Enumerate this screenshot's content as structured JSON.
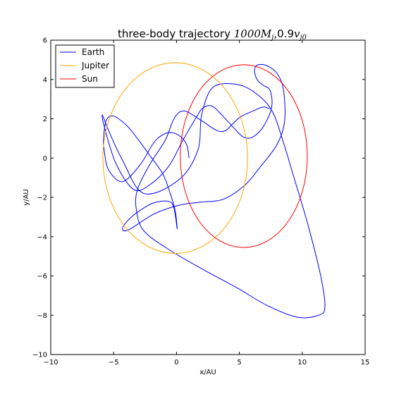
{
  "chart_data": {
    "type": "line",
    "title": {
      "prefix": "three-body trajectory ",
      "math_value": "1000",
      "math_var": "M",
      "math_sub": "j",
      "separator": ",0.9",
      "vel_var": "v",
      "vel_sub": "j0"
    },
    "xlabel": "x/AU",
    "ylabel": "y/AU",
    "xlim": [
      -10,
      15
    ],
    "ylim": [
      -10,
      6
    ],
    "xticks": [
      -10,
      -5,
      0,
      5,
      10,
      15
    ],
    "yticks": [
      -10,
      -8,
      -6,
      -4,
      -2,
      0,
      2,
      4,
      6
    ],
    "grid": false,
    "legend_position": "top-left",
    "series": [
      {
        "name": "Earth",
        "color": "#0000ff",
        "x": [
          1.0,
          0.8,
          0.2,
          -0.6,
          -1.3,
          -1.9,
          -2.9,
          -4.3,
          -5.4,
          -5.75,
          -5.8,
          -5.6,
          -5.1,
          -4.4,
          -3.6,
          -2.2,
          -1.1,
          -0.5,
          -0.1,
          0.05,
          -0.2,
          -0.65,
          -1.9,
          -3.2,
          -3.9,
          -4.3,
          -3.8,
          -1.8,
          0.2,
          1.8,
          3.7,
          5.4,
          6.6,
          8.0,
          8.6,
          8.5,
          8.0,
          7.2,
          6.5,
          6.2,
          6.4,
          6.9,
          7.4,
          7.6,
          7.45,
          6.8,
          6.0,
          5.4,
          4.9,
          3.6,
          2.8,
          2.1,
          1.6,
          0.5,
          -0.6,
          -2.1,
          -3.4,
          -4.8,
          -5.7,
          -5.9,
          -5.4,
          -4.3,
          -2.6,
          0.2,
          1.7,
          2.0,
          2.9,
          4.8,
          6.3,
          7.6,
          8.5,
          9.3,
          10.5,
          11.5,
          11.8,
          11.3,
          9.6,
          7.2,
          4.8,
          2.2,
          -0.5,
          -2.6,
          -3.2,
          -3.1,
          -2.1,
          -0.9,
          -0.2,
          0.6,
          2.0,
          3.2,
          3.9,
          4.4,
          5.1,
          6.1,
          6.9,
          7.4
        ],
        "y": [
          0.0,
          0.7,
          1.15,
          1.3,
          1.1,
          0.7,
          -0.35,
          -1.2,
          -0.6,
          0.4,
          1.0,
          1.9,
          2.15,
          1.9,
          1.4,
          0.2,
          -0.8,
          -1.8,
          -2.7,
          -3.6,
          -2.55,
          -2.2,
          -2.3,
          -2.8,
          -3.2,
          -3.6,
          -3.65,
          -2.85,
          -2.4,
          -2.25,
          -2.1,
          -1.4,
          -0.5,
          0.7,
          1.9,
          3.5,
          4.3,
          4.7,
          4.75,
          4.5,
          4.0,
          3.7,
          3.5,
          2.9,
          2.3,
          1.5,
          1.05,
          1.05,
          1.3,
          2.2,
          2.65,
          2.55,
          2.1,
          0.9,
          -0.4,
          -1.35,
          -1.6,
          -0.3,
          1.5,
          2.2,
          1.4,
          -0.1,
          -1.8,
          -1.1,
          0.4,
          2.2,
          3.6,
          3.75,
          3.3,
          2.4,
          0.8,
          -0.9,
          -3.5,
          -6.1,
          -7.6,
          -8.0,
          -8.1,
          -7.5,
          -6.6,
          -5.7,
          -4.7,
          -3.7,
          -2.6,
          -1.6,
          -0.3,
          0.9,
          2.0,
          2.4,
          1.9,
          1.4,
          1.4,
          1.7,
          2.1,
          2.4,
          2.6,
          2.5
        ]
      },
      {
        "name": "Jupiter",
        "color": "#ffa500",
        "shape": "ellipse",
        "center": [
          -0.1,
          0.0
        ],
        "semi_axes": [
          5.75,
          4.85
        ]
      },
      {
        "name": "Sun",
        "color": "#ff0000",
        "shape": "ellipse",
        "center": [
          5.35,
          0.1
        ],
        "semi_axes": [
          5.05,
          4.65
        ]
      }
    ]
  }
}
